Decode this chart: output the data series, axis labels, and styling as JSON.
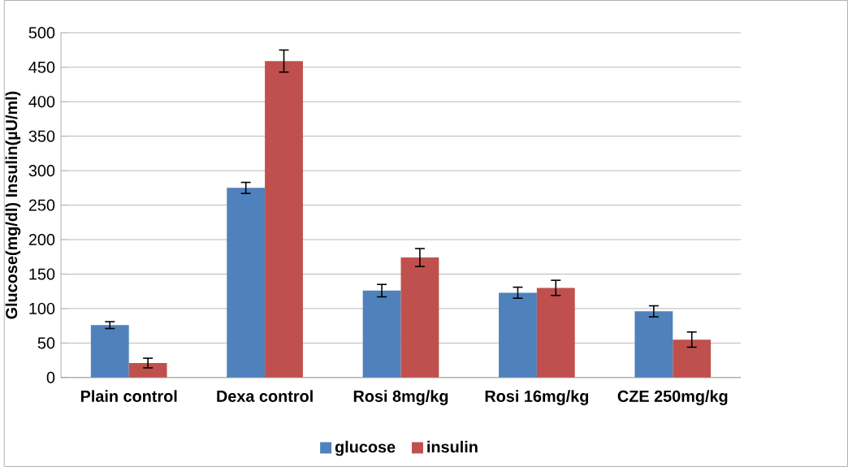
{
  "chart_data": {
    "type": "bar",
    "ylabel": "Glucose(mg/dl)   Insulin(µU/ml)",
    "categories": [
      "Plain control",
      "Dexa control",
      "Rosi 8mg/kg",
      "Rosi 16mg/kg",
      "CZE 250mg/kg"
    ],
    "series": [
      {
        "name": "glucose",
        "color": "#4f81bd",
        "values": [
          76,
          275,
          126,
          123,
          96
        ],
        "errors": [
          5,
          8,
          9,
          8,
          8
        ]
      },
      {
        "name": "insulin",
        "color": "#c0504d",
        "values": [
          21,
          459,
          174,
          130,
          55
        ],
        "errors": [
          7,
          16,
          13,
          11,
          11
        ]
      }
    ],
    "ylim": [
      0,
      500
    ],
    "yticks": [
      0,
      50,
      100,
      150,
      200,
      250,
      300,
      350,
      400,
      450,
      500
    ],
    "grid": "y",
    "legend": "bottom"
  }
}
